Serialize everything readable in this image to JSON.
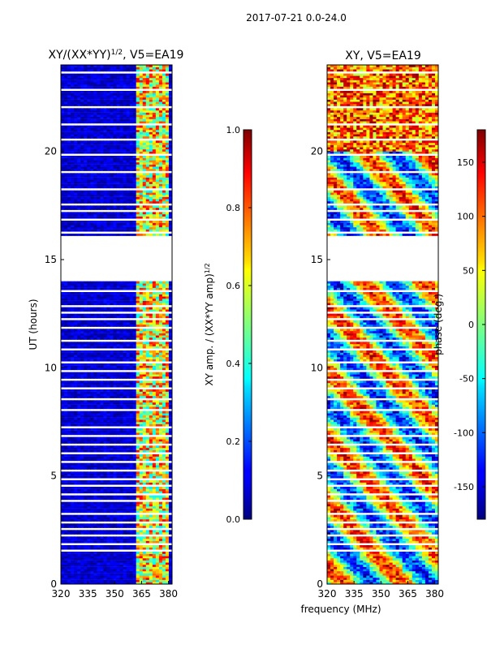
{
  "figure": {
    "suptitle": "2017-07-21 0.0-24.0",
    "xlabel_shared": "frequency (MHz)"
  },
  "chart_data": [
    {
      "type": "heatmap",
      "title": "XY/(XX*YY)^1/2, V5=EA19",
      "title_main": "XY/(XX*YY)",
      "title_sup": "1/2",
      "title_tail": ", V5=EA19",
      "xlabel": "",
      "ylabel": "UT (hours)",
      "xlim": [
        320,
        382
      ],
      "ylim": [
        0,
        24
      ],
      "xticks": [
        320,
        335,
        350,
        365,
        380
      ],
      "yticks": [
        0,
        5,
        10,
        15,
        20
      ],
      "colorbar": {
        "label": "XY amp. / (XX*YY amp)^1/2",
        "label_main": "XY amp. / (XX*YY amp)",
        "label_sup": "1/2",
        "range": [
          0.0,
          1.0
        ],
        "ticks": [
          "0.0",
          "0.2",
          "0.4",
          "0.6",
          "0.8",
          "1.0"
        ]
      },
      "data_gaps_hours": [
        [
          14.0,
          16.1
        ]
      ]
    },
    {
      "type": "heatmap",
      "title": "XY, V5=EA19",
      "xlabel": "",
      "ylabel": "",
      "xlim": [
        320,
        382
      ],
      "ylim": [
        0,
        24
      ],
      "xticks": [
        320,
        335,
        350,
        365,
        380
      ],
      "yticks": [
        0,
        5,
        10,
        15,
        20
      ],
      "colorbar": {
        "label": "phase (deg.)",
        "range": [
          -180,
          180
        ],
        "ticks": [
          "-150",
          "-100",
          "-50",
          "0",
          "50",
          "100",
          "150"
        ]
      },
      "data_gaps_hours": [
        [
          14.0,
          16.1
        ]
      ]
    }
  ],
  "colors": {
    "jet_low": "#00007f",
    "jet_mid": "#7fff7f",
    "jet_high": "#7f0000"
  }
}
